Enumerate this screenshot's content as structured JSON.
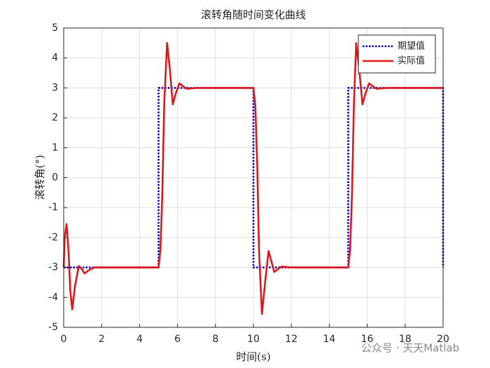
{
  "chart_data": {
    "type": "line",
    "title": "滚转角随时间变化曲线",
    "x_label": "时间(s)",
    "y_label": "滚转角(°)",
    "watermark": "公众号 · 天天Matlab",
    "xlim": [
      0,
      20
    ],
    "xticks": [
      0,
      2,
      4,
      6,
      8,
      10,
      12,
      14,
      16,
      18,
      20
    ],
    "ylim": [
      -5,
      5
    ],
    "yticks": [
      -5,
      -4,
      -3,
      -2,
      -1,
      0,
      1,
      2,
      3,
      4,
      5
    ],
    "grid": true,
    "legend": "upper right",
    "series": [
      {
        "name": "期望值",
        "color": "#0000c8",
        "style": "dotted",
        "x": [
          0,
          5,
          5,
          10,
          10,
          15,
          15,
          20,
          20
        ],
        "values": [
          -3,
          -3,
          3,
          3,
          -3,
          -3,
          3,
          3,
          -3
        ]
      },
      {
        "name": "实际值",
        "color": "#e0161b",
        "style": "solid",
        "x": [
          0,
          0.05,
          0.15,
          0.25,
          0.35,
          0.45,
          0.6,
          0.8,
          0.95,
          1.1,
          1.3,
          1.6,
          2,
          5,
          5.1,
          5.2,
          5.3,
          5.45,
          5.6,
          5.75,
          5.9,
          6.1,
          6.3,
          6.5,
          7,
          10,
          10.1,
          10.2,
          10.3,
          10.45,
          10.6,
          10.8,
          10.95,
          11.1,
          11.3,
          11.5,
          12,
          15,
          15.1,
          15.2,
          15.3,
          15.42,
          15.58,
          15.75,
          15.9,
          16.1,
          16.3,
          16.5,
          17,
          20
        ],
        "values": [
          -3,
          -2,
          -1.55,
          -2.4,
          -3.8,
          -4.4,
          -3.6,
          -2.95,
          -3.05,
          -3.2,
          -3.1,
          -3,
          -3,
          -3,
          -2.4,
          -0.5,
          2.5,
          4.5,
          3.6,
          2.45,
          2.8,
          3.15,
          3.05,
          2.97,
          3,
          3,
          2.4,
          0.5,
          -2.5,
          -4.55,
          -3.6,
          -2.45,
          -2.8,
          -3.15,
          -3.05,
          -2.97,
          -3,
          -3,
          -2.4,
          -0.5,
          2.5,
          4.5,
          3.6,
          2.45,
          2.8,
          3.15,
          3.05,
          2.97,
          3,
          3
        ]
      }
    ]
  }
}
